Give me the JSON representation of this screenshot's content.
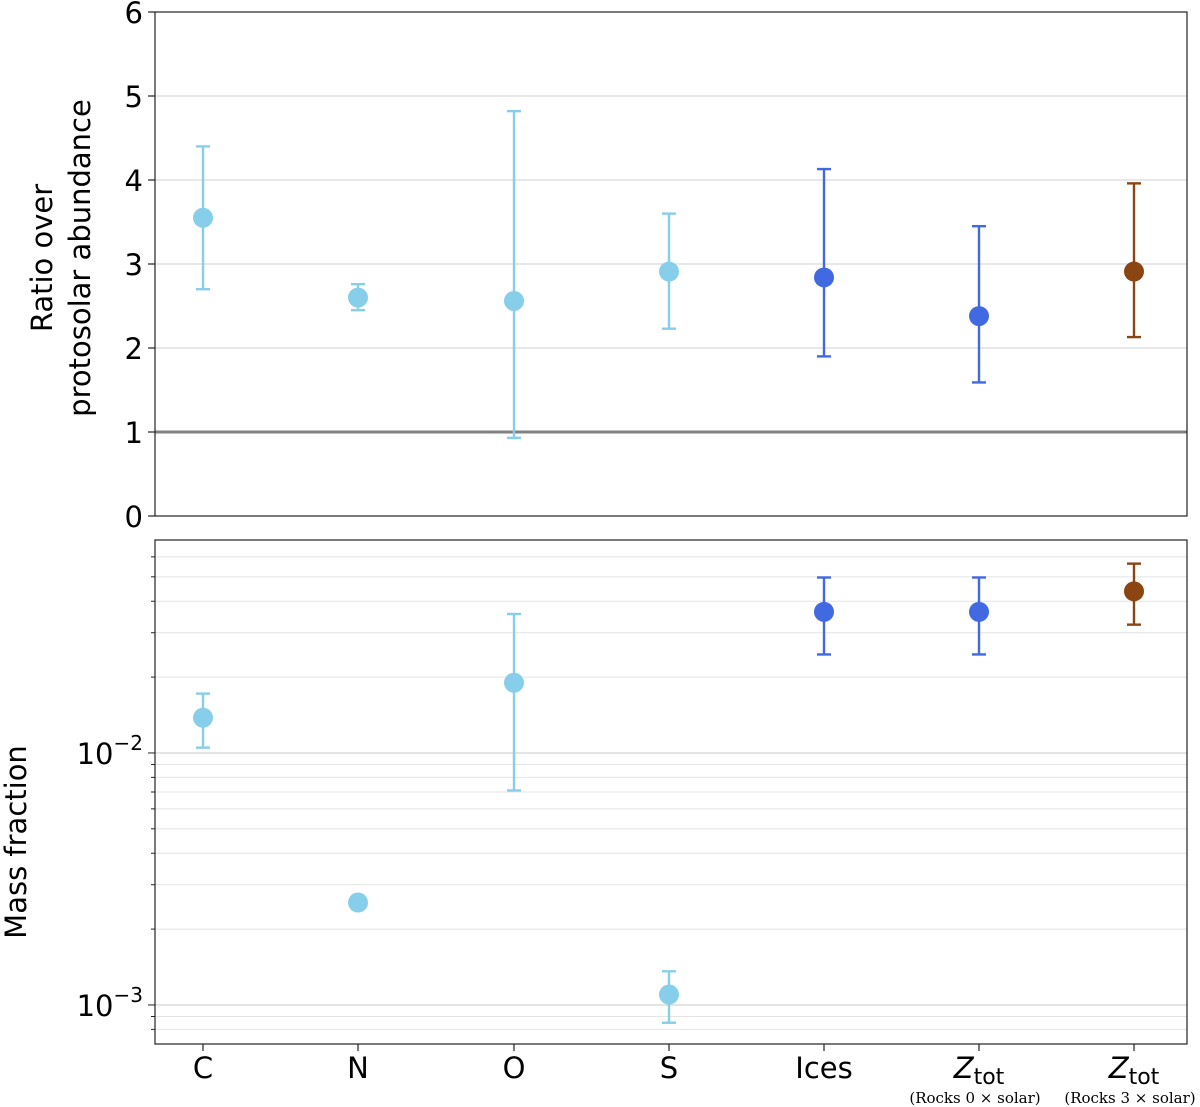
{
  "chart_data": [
    {
      "type": "scatter",
      "title": "",
      "xlabel": "",
      "ylabel": "Ratio over protosolar abundance",
      "ylabel_lines": [
        "Ratio over",
        "protosolar abundance"
      ],
      "ylim": [
        0,
        6
      ],
      "yticks": [
        "0",
        "1",
        "2",
        "3",
        "4",
        "5",
        "6"
      ],
      "grid": "horizontal",
      "reference_line": 1,
      "categories": [
        "C",
        "N",
        "O",
        "S",
        "Ices",
        "Z_tot (Rocks 0 × solar)",
        "Z_tot (Rocks 3 × solar)"
      ],
      "points": [
        {
          "value": 3.55,
          "low": 2.7,
          "high": 4.4,
          "color": "#87ceeb"
        },
        {
          "value": 2.6,
          "low": 2.45,
          "high": 2.76,
          "color": "#87ceeb"
        },
        {
          "value": 2.56,
          "low": 0.93,
          "high": 4.82,
          "color": "#87ceeb"
        },
        {
          "value": 2.91,
          "low": 2.23,
          "high": 3.6,
          "color": "#87ceeb"
        },
        {
          "value": 2.84,
          "low": 1.9,
          "high": 4.13,
          "color": "#4169e1"
        },
        {
          "value": 2.38,
          "low": 1.59,
          "high": 3.45,
          "color": "#4169e1"
        },
        {
          "value": 2.91,
          "low": 2.13,
          "high": 3.96,
          "color": "#8b4513"
        }
      ]
    },
    {
      "type": "scatter",
      "title": "",
      "xlabel": "",
      "ylabel": "Mass fraction",
      "yscale": "log",
      "ylim": [
        0.0007,
        0.07
      ],
      "yticks": [
        {
          "base": "10",
          "exp": "−2",
          "value": 0.01
        },
        {
          "base": "10",
          "exp": "−3",
          "value": 0.001
        }
      ],
      "grid": "horizontal",
      "categories": [
        "C",
        "N",
        "O",
        "S",
        "Ices",
        "Z_tot (Rocks 0 × solar)",
        "Z_tot (Rocks 3 × solar)"
      ],
      "points": [
        {
          "value": 0.0138,
          "low": 0.0105,
          "high": 0.0172,
          "color": "#87ceeb"
        },
        {
          "value": 0.00255,
          "low": 0.00242,
          "high": 0.00268,
          "color": "#87ceeb"
        },
        {
          "value": 0.019,
          "low": 0.0071,
          "high": 0.0356,
          "color": "#87ceeb"
        },
        {
          "value": 0.0011,
          "low": 0.00085,
          "high": 0.00136,
          "color": "#87ceeb"
        },
        {
          "value": 0.0363,
          "low": 0.0246,
          "high": 0.0497,
          "color": "#4169e1"
        },
        {
          "value": 0.0363,
          "low": 0.0246,
          "high": 0.0497,
          "color": "#4169e1"
        },
        {
          "value": 0.0438,
          "low": 0.0323,
          "high": 0.0564,
          "color": "#8b4513"
        }
      ]
    }
  ],
  "xaxis_labels": [
    {
      "main": "C"
    },
    {
      "main": "N"
    },
    {
      "main": "O"
    },
    {
      "main": "S"
    },
    {
      "main": "Ices"
    },
    {
      "main": "Z",
      "sub": "tot",
      "note": "(Rocks 0 × solar)"
    },
    {
      "main": "Z",
      "sub": "tot",
      "note": "(Rocks 3 × solar)"
    }
  ],
  "colors": {
    "light": "#87ceeb",
    "royal": "#4169e1",
    "brown": "#8b4513",
    "grid": "#d0d0d0",
    "refline": "#808080"
  }
}
